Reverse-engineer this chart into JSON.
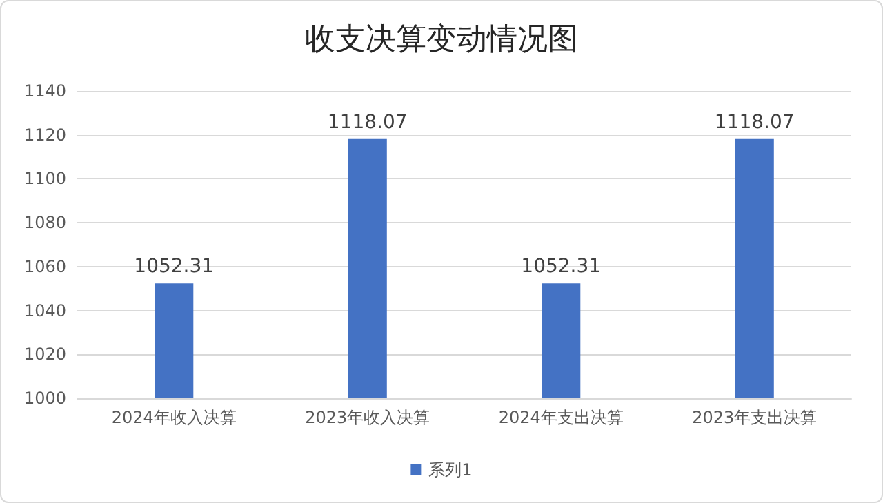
{
  "chart_data": {
    "type": "bar",
    "title": "收支决算变动情况图",
    "categories": [
      "2024年收入决算",
      "2023年收入决算",
      "2024年支出决算",
      "2023年支出决算"
    ],
    "series": [
      {
        "name": "系列1",
        "color": "#4472c4",
        "values": [
          1052.31,
          1118.07,
          1052.31,
          1118.07
        ]
      }
    ],
    "ylim": [
      1000,
      1140
    ],
    "yticks": [
      1000,
      1020,
      1040,
      1060,
      1080,
      1100,
      1120,
      1140
    ],
    "grid": "y",
    "legend": "bottom",
    "data_labels": true
  }
}
